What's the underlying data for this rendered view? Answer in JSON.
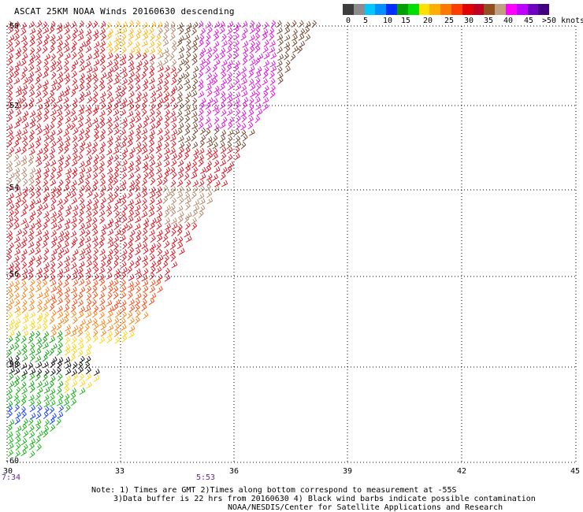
{
  "title": "ASCAT 25KM NOAA Winds 20160630 descending",
  "legend": {
    "colors": [
      "#3c3c3c",
      "#8c8c8c",
      "#00c8ff",
      "#0090ff",
      "#0030ff",
      "#00a000",
      "#00e000",
      "#ffe000",
      "#ffb000",
      "#ff7800",
      "#ff3c00",
      "#e00000",
      "#c00020",
      "#905020",
      "#c0a080",
      "#ff00ff",
      "#c000ff",
      "#7000c0",
      "#400080"
    ],
    "labels": [
      "0",
      "5",
      "10",
      "15",
      "20",
      "25",
      "30",
      "35",
      "40",
      "45",
      ">50 knots"
    ],
    "label_x": [
      439,
      461,
      486,
      509,
      537,
      564,
      589,
      614,
      639,
      665,
      688
    ]
  },
  "axes": {
    "lon_ticks": [
      "30",
      "33",
      "36",
      "39",
      "42",
      "45"
    ],
    "lat_ticks": [
      "-50",
      "-52",
      "-54",
      "-56",
      "-58",
      "-60"
    ]
  },
  "times": [
    "7:34",
    "5:53"
  ],
  "notes": [
    "Note: 1) Times are GMT 2)Times along bottom correspond to measurement at -55S",
    "3)Data buffer is 22 hrs from 20160630 4) Black wind barbs indicate possible contamination",
    "NOAA/NESDIS/Center for Satellite Applications and Research"
  ],
  "icons": {
    "wind_barb": "wind-barb-icon"
  }
}
